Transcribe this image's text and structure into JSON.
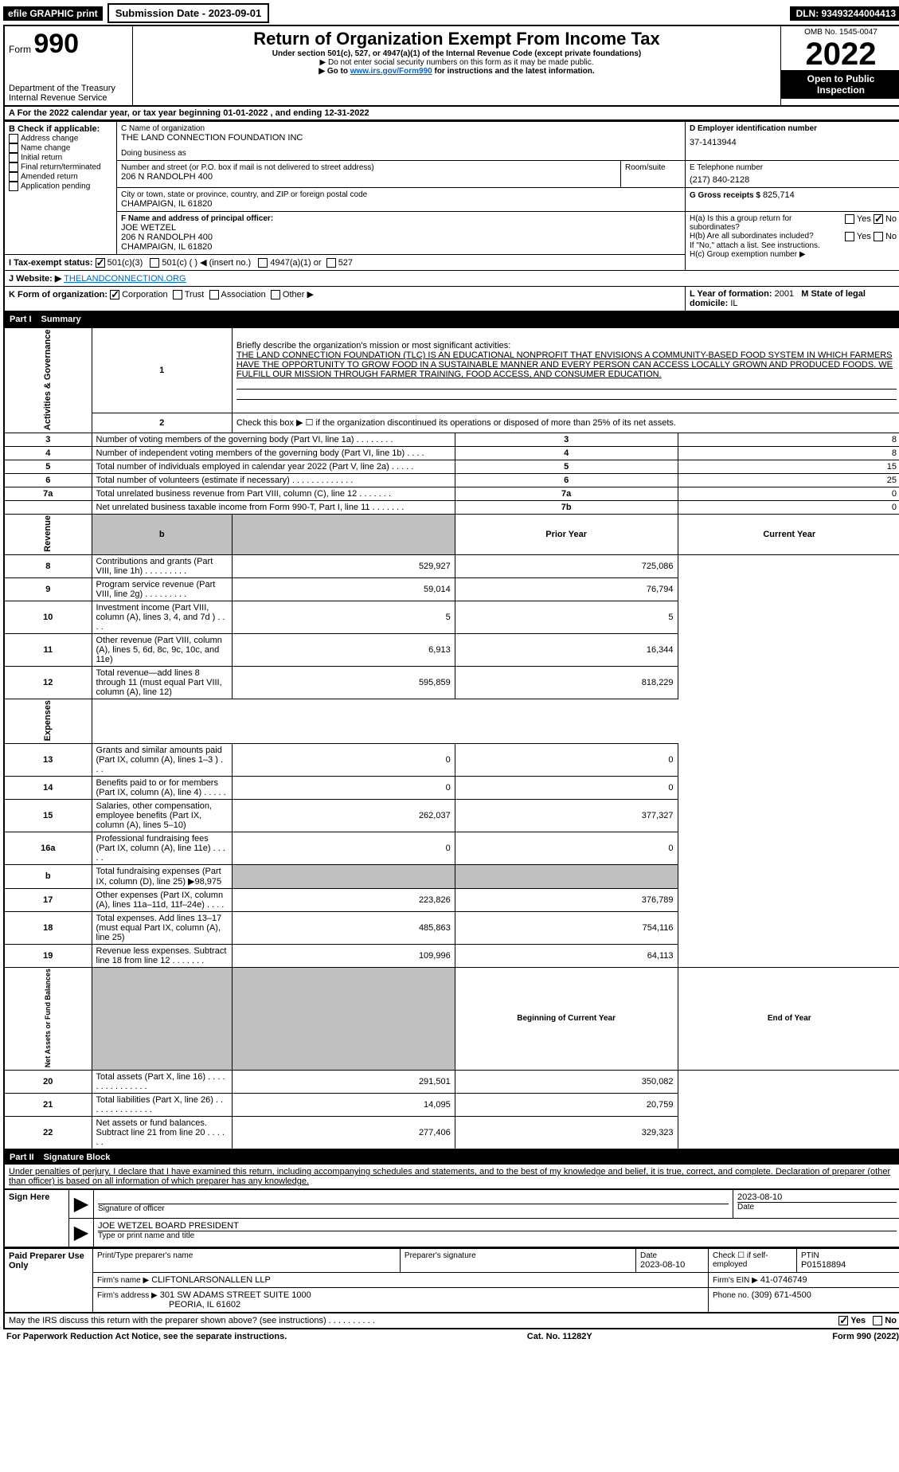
{
  "top": {
    "efile": "efile GRAPHIC print",
    "submission": "Submission Date - 2023-09-01",
    "dln": "DLN: 93493244004413"
  },
  "header": {
    "form_label": "Form",
    "form_number": "990",
    "title": "Return of Organization Exempt From Income Tax",
    "subtitle": "Under section 501(c), 527, or 4947(a)(1) of the Internal Revenue Code (except private foundations)",
    "note1": "▶ Do not enter social security numbers on this form as it may be made public.",
    "note2_pre": "▶ Go to ",
    "note2_link": "www.irs.gov/Form990",
    "note2_post": " for instructions and the latest information.",
    "dept": "Department of the Treasury",
    "irs": "Internal Revenue Service",
    "omb": "OMB No. 1545-0047",
    "year": "2022",
    "open": "Open to Public Inspection"
  },
  "a_line": "For the 2022 calendar year, or tax year beginning 01-01-2022   , and ending 12-31-2022",
  "b": {
    "label": "B Check if applicable:",
    "opts": [
      "Address change",
      "Name change",
      "Initial return",
      "Final return/terminated",
      "Amended return",
      "Application pending"
    ]
  },
  "c": {
    "name_label": "C Name of organization",
    "name": "THE LAND CONNECTION FOUNDATION INC",
    "dba_label": "Doing business as",
    "dba": "",
    "street_label": "Number and street (or P.O. box if mail is not delivered to street address)",
    "room_label": "Room/suite",
    "street": "206 N RANDOLPH 400",
    "city_label": "City or town, state or province, country, and ZIP or foreign postal code",
    "city": "CHAMPAIGN, IL  61820"
  },
  "d": {
    "label": "D Employer identification number",
    "val": "37-1413944"
  },
  "e": {
    "label": "E Telephone number",
    "val": "(217) 840-2128"
  },
  "g": {
    "label": "G Gross receipts $",
    "val": "825,714"
  },
  "f": {
    "label": "F Name and address of principal officer:",
    "name": "JOE WETZEL",
    "addr1": "206 N RANDOLPH 400",
    "addr2": "CHAMPAIGN, IL  61820"
  },
  "h": {
    "a_label": "H(a)  Is this a group return for subordinates?",
    "b_label": "H(b)  Are all subordinates included?",
    "b_note": "If \"No,\" attach a list. See instructions.",
    "c_label": "H(c)  Group exemption number ▶",
    "yes": "Yes",
    "no": "No"
  },
  "i": {
    "label": "I Tax-exempt status:",
    "o1": "501(c)(3)",
    "o2": "501(c) (   ) ◀ (insert no.)",
    "o3": "4947(a)(1) or",
    "o4": "527"
  },
  "j": {
    "label": "J  Website: ▶",
    "val": "THELANDCONNECTION.ORG"
  },
  "k": {
    "label": "K Form of organization:",
    "o1": "Corporation",
    "o2": "Trust",
    "o3": "Association",
    "o4": "Other ▶"
  },
  "l": {
    "label": "L Year of formation:",
    "val": "2001"
  },
  "m": {
    "label": "M State of legal domicile:",
    "val": "IL"
  },
  "part1": {
    "title": "Part I",
    "subtitle": "Summary",
    "s1": {
      "label": "Activities & Governance",
      "l1": "Briefly describe the organization's mission or most significant activities:",
      "mission": "THE LAND CONNECTION FOUNDATION (TLC) IS AN EDUCATIONAL NONPROFIT THAT ENVISIONS A COMMUNITY-BASED FOOD SYSTEM IN WHICH FARMERS HAVE THE OPPORTUNITY TO GROW FOOD IN A SUSTAINABLE MANNER AND EVERY PERSON CAN ACCESS LOCALLY GROWN AND PRODUCED FOODS. WE FULFILL OUR MISSION THROUGH FARMER TRAINING, FOOD ACCESS, AND CONSUMER EDUCATION.",
      "l2": "Check this box ▶ ☐ if the organization discontinued its operations or disposed of more than 25% of its net assets.",
      "rows": [
        {
          "n": "3",
          "t": "Number of voting members of the governing body (Part VI, line 1a)  .  .  .  .  .  .  .  .",
          "i": "3",
          "v": "8"
        },
        {
          "n": "4",
          "t": "Number of independent voting members of the governing body (Part VI, line 1b)  .  .  .  .",
          "i": "4",
          "v": "8"
        },
        {
          "n": "5",
          "t": "Total number of individuals employed in calendar year 2022 (Part V, line 2a)  .  .  .  .  .",
          "i": "5",
          "v": "15"
        },
        {
          "n": "6",
          "t": "Total number of volunteers (estimate if necessary)  .  .  .  .  .  .  .  .  .  .  .  .  .",
          "i": "6",
          "v": "25"
        },
        {
          "n": "7a",
          "t": "Total unrelated business revenue from Part VIII, column (C), line 12  .  .  .  .  .  .  .",
          "i": "7a",
          "v": "0"
        },
        {
          "n": "",
          "t": "Net unrelated business taxable income from Form 990-T, Part I, line 11  .  .  .  .  .  .  .",
          "i": "7b",
          "v": "0"
        }
      ]
    },
    "s2": {
      "label": "Revenue",
      "hdr_prior": "Prior Year",
      "hdr_current": "Current Year",
      "hdr_b": "b",
      "rows": [
        {
          "n": "8",
          "t": "Contributions and grants (Part VIII, line 1h)  .  .  .  .  .  .  .  .  .",
          "p": "529,927",
          "c": "725,086"
        },
        {
          "n": "9",
          "t": "Program service revenue (Part VIII, line 2g)  .  .  .  .  .  .  .  .  .",
          "p": "59,014",
          "c": "76,794"
        },
        {
          "n": "10",
          "t": "Investment income (Part VIII, column (A), lines 3, 4, and 7d )  .  .  .  .",
          "p": "5",
          "c": "5"
        },
        {
          "n": "11",
          "t": "Other revenue (Part VIII, column (A), lines 5, 6d, 8c, 9c, 10c, and 11e)",
          "p": "6,913",
          "c": "16,344"
        },
        {
          "n": "12",
          "t": "Total revenue—add lines 8 through 11 (must equal Part VIII, column (A), line 12)",
          "p": "595,859",
          "c": "818,229"
        }
      ]
    },
    "s3": {
      "label": "Expenses",
      "rows": [
        {
          "n": "13",
          "t": "Grants and similar amounts paid (Part IX, column (A), lines 1–3 )  .  .  .",
          "p": "0",
          "c": "0"
        },
        {
          "n": "14",
          "t": "Benefits paid to or for members (Part IX, column (A), line 4)  .  .  .  .  .",
          "p": "0",
          "c": "0"
        },
        {
          "n": "15",
          "t": "Salaries, other compensation, employee benefits (Part IX, column (A), lines 5–10)",
          "p": "262,037",
          "c": "377,327"
        },
        {
          "n": "16a",
          "t": "Professional fundraising fees (Part IX, column (A), line 11e)  .  .  .  .  .",
          "p": "0",
          "c": "0"
        },
        {
          "n": "b",
          "t": "Total fundraising expenses (Part IX, column (D), line 25) ▶98,975",
          "p": "",
          "c": "",
          "gray": true
        },
        {
          "n": "17",
          "t": "Other expenses (Part IX, column (A), lines 11a–11d, 11f–24e)  .  .  .  .",
          "p": "223,826",
          "c": "376,789"
        },
        {
          "n": "18",
          "t": "Total expenses. Add lines 13–17 (must equal Part IX, column (A), line 25)",
          "p": "485,863",
          "c": "754,116"
        },
        {
          "n": "19",
          "t": "Revenue less expenses. Subtract line 18 from line 12  .  .  .  .  .  .  .",
          "p": "109,996",
          "c": "64,113"
        }
      ]
    },
    "s4": {
      "label": "Net Assets or Fund Balances",
      "hdr_begin": "Beginning of Current Year",
      "hdr_end": "End of Year",
      "rows": [
        {
          "n": "20",
          "t": "Total assets (Part X, line 16)  .  .  .  .  .  .  .  .  .  .  .  .  .  .  .",
          "p": "291,501",
          "c": "350,082"
        },
        {
          "n": "21",
          "t": "Total liabilities (Part X, line 26)  .  .  .  .  .  .  .  .  .  .  .  .  .  .",
          "p": "14,095",
          "c": "20,759"
        },
        {
          "n": "22",
          "t": "Net assets or fund balances. Subtract line 21 from line 20  .  .  .  .  .  .",
          "p": "277,406",
          "c": "329,323"
        }
      ]
    }
  },
  "part2": {
    "title": "Part II",
    "subtitle": "Signature Block",
    "decl": "Under penalties of perjury, I declare that I have examined this return, including accompanying schedules and statements, and to the best of my knowledge and belief, it is true, correct, and complete. Declaration of preparer (other than officer) is based on all information of which preparer has any knowledge."
  },
  "sign": {
    "side": "Sign Here",
    "sig_label": "Signature of officer",
    "date_label": "Date",
    "date_val": "2023-08-10",
    "name": "JOE WETZEL BOARD PRESIDENT",
    "name_label": "Type or print name and title"
  },
  "paid": {
    "side": "Paid Preparer Use Only",
    "c1": "Print/Type preparer's name",
    "c2": "Preparer's signature",
    "c3": "Date",
    "c3v": "2023-08-10",
    "c4": "Check ☐ if self-employed",
    "c5": "PTIN",
    "c5v": "P01518894",
    "firm_label": "Firm's name    ▶",
    "firm": "CLIFTONLARSONALLEN LLP",
    "ein_label": "Firm's EIN ▶",
    "ein": "41-0746749",
    "addr_label": "Firm's address ▶",
    "addr1": "301 SW ADAMS STREET SUITE 1000",
    "addr2": "PEORIA, IL  61602",
    "phone_label": "Phone no.",
    "phone": "(309) 671-4500"
  },
  "discuss": {
    "q": "May the IRS discuss this return with the preparer shown above? (see instructions)  .  .  .  .  .  .  .  .  .  .",
    "yes": "Yes",
    "no": "No"
  },
  "footer": {
    "left": "For Paperwork Reduction Act Notice, see the separate instructions.",
    "mid": "Cat. No. 11282Y",
    "right": "Form 990 (2022)"
  }
}
